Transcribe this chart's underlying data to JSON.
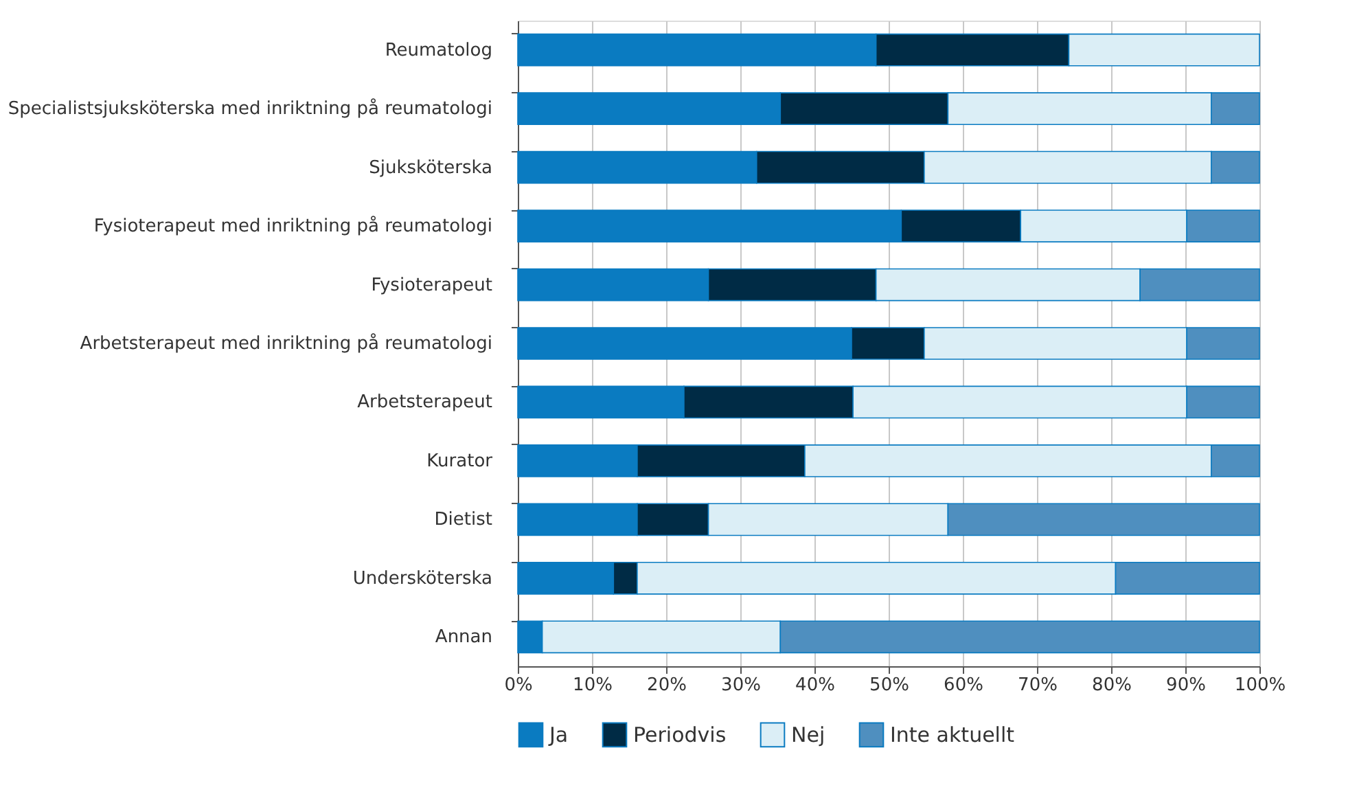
{
  "chart_data": {
    "type": "bar",
    "orientation": "horizontal",
    "stacked": true,
    "categories": [
      "Reumatolog",
      "Specialistsjuksköterska med inriktning på reumatologi",
      "Sjuksköterska",
      "Fysioterapeut med inriktning på reumatologi",
      "Fysioterapeut",
      "Arbetsterapeut med inriktning på reumatologi",
      "Arbetsterapeut",
      "Kurator",
      "Dietist",
      "Undersköterska",
      "Annan"
    ],
    "series": [
      {
        "name": "Ja",
        "color": "#0a7bc1",
        "values": [
          48.3,
          35.4,
          32.2,
          51.7,
          25.7,
          45,
          22.4,
          16.1,
          16.1,
          12.9,
          3.3
        ]
      },
      {
        "name": "Periodvis",
        "color": "#002b45",
        "values": [
          26,
          22.6,
          22.6,
          16.1,
          22.6,
          9.8,
          22.8,
          22.6,
          9.6,
          3.2,
          0
        ]
      },
      {
        "name": "Nej",
        "color": "#dbeef6",
        "values": [
          25.7,
          35.5,
          38.7,
          22.4,
          35.6,
          35.4,
          45,
          54.8,
          32.3,
          64.5,
          32.1
        ]
      },
      {
        "name": "Inte aktuellt",
        "color": "#4f8fbf",
        "values": [
          0,
          6.5,
          6.5,
          9.8,
          16.1,
          9.8,
          9.8,
          6.5,
          42,
          19.4,
          64.6
        ]
      }
    ],
    "xlim": [
      0,
      100
    ],
    "xticks": [
      {
        "value": 0,
        "label": "0%"
      },
      {
        "value": 10,
        "label": "10%"
      },
      {
        "value": 20,
        "label": "20%"
      },
      {
        "value": 30,
        "label": "30%"
      },
      {
        "value": 40,
        "label": "40%"
      },
      {
        "value": 50,
        "label": "50%"
      },
      {
        "value": 60,
        "label": "60%"
      },
      {
        "value": 70,
        "label": "70%"
      },
      {
        "value": 80,
        "label": "80%"
      },
      {
        "value": 90,
        "label": "90%"
      },
      {
        "value": 100,
        "label": "100%"
      }
    ],
    "grid": "x",
    "legend": "bottom"
  }
}
